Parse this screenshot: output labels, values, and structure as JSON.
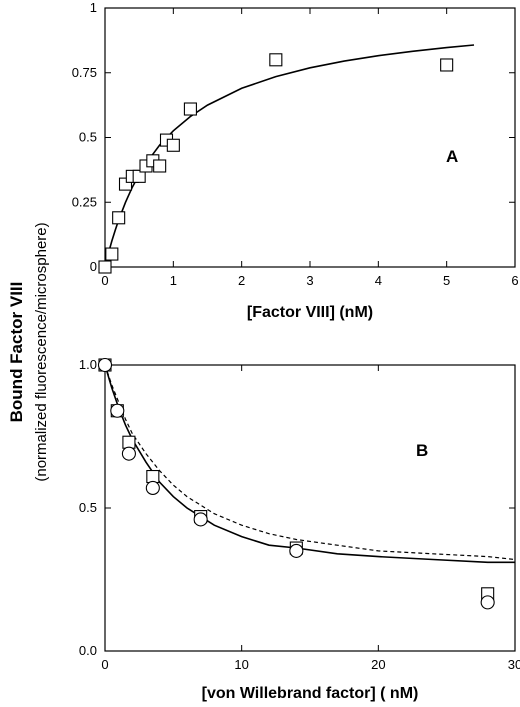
{
  "figure": {
    "ylabel_main": "Bound Factor VIII",
    "ylabel_sub": "(normalized fluorescence/microsphere)"
  },
  "chart_data": [
    {
      "type": "scatter",
      "panel_label": "A",
      "xlabel": "[Factor VIII] (nM)",
      "xlim": [
        0,
        6
      ],
      "ylim": [
        0,
        1
      ],
      "x_ticks": [
        0,
        1,
        2,
        3,
        4,
        5,
        6
      ],
      "x_tick_labels": [
        "0",
        "1",
        "2",
        "3",
        "4",
        "5",
        "6"
      ],
      "y_ticks": [
        0,
        0.25,
        0.5,
        0.75,
        1
      ],
      "y_tick_labels": [
        "0",
        "0.25",
        "0.5",
        "0.75",
        "1"
      ],
      "series": [
        {
          "marker": "square",
          "x": [
            0,
            0.1,
            0.2,
            0.3,
            0.4,
            0.5,
            0.6,
            0.7,
            0.8,
            0.9,
            1.0,
            1.25,
            2.5,
            5.0
          ],
          "y": [
            0.0,
            0.05,
            0.19,
            0.32,
            0.35,
            0.35,
            0.39,
            0.41,
            0.39,
            0.49,
            0.47,
            0.61,
            0.8,
            0.78
          ]
        },
        {
          "line": "solid",
          "x": [
            0.05,
            0.1,
            0.15,
            0.2,
            0.3,
            0.4,
            0.5,
            0.6,
            0.8,
            1.0,
            1.25,
            1.5,
            2.0,
            2.5,
            3.0,
            3.5,
            4.0,
            4.5,
            5.0,
            5.4
          ],
          "y": [
            0.053,
            0.1,
            0.143,
            0.182,
            0.25,
            0.308,
            0.357,
            0.4,
            0.471,
            0.526,
            0.581,
            0.625,
            0.69,
            0.735,
            0.769,
            0.795,
            0.816,
            0.833,
            0.847,
            0.857
          ]
        }
      ]
    },
    {
      "type": "scatter",
      "panel_label": "B",
      "xlabel": "[von Willebrand factor] ( nM)",
      "xlim": [
        0,
        30
      ],
      "ylim": [
        0,
        1
      ],
      "x_ticks": [
        0,
        10,
        20,
        30
      ],
      "x_tick_labels": [
        "0",
        "10",
        "20",
        "30"
      ],
      "y_ticks": [
        0,
        0.5,
        1
      ],
      "y_tick_labels": [
        "0.0",
        "0.5",
        "1.0"
      ],
      "series": [
        {
          "marker": "square",
          "x": [
            0,
            0.9,
            1.75,
            3.5,
            7,
            14,
            28
          ],
          "y": [
            1.0,
            0.84,
            0.73,
            0.61,
            0.47,
            0.36,
            0.2
          ]
        },
        {
          "marker": "circle",
          "x": [
            0,
            0.9,
            1.75,
            3.5,
            7,
            14,
            28
          ],
          "y": [
            1.0,
            0.84,
            0.69,
            0.57,
            0.46,
            0.35,
            0.17
          ]
        },
        {
          "line": "solid",
          "x": [
            0,
            0.5,
            1,
            1.5,
            2,
            3,
            4,
            5,
            6,
            8,
            10,
            12,
            14,
            17,
            20,
            24,
            28,
            30
          ],
          "y": [
            1.0,
            0.92,
            0.85,
            0.79,
            0.74,
            0.66,
            0.59,
            0.54,
            0.5,
            0.44,
            0.4,
            0.37,
            0.36,
            0.34,
            0.33,
            0.32,
            0.31,
            0.31
          ]
        },
        {
          "line": "dashed",
          "x": [
            0,
            0.5,
            1,
            1.5,
            2,
            3,
            4,
            5,
            6,
            8,
            10,
            12,
            14,
            17,
            20,
            24,
            28,
            30
          ],
          "y": [
            1.0,
            0.93,
            0.87,
            0.81,
            0.76,
            0.69,
            0.63,
            0.58,
            0.54,
            0.48,
            0.44,
            0.41,
            0.39,
            0.37,
            0.35,
            0.34,
            0.33,
            0.32
          ]
        }
      ]
    }
  ]
}
